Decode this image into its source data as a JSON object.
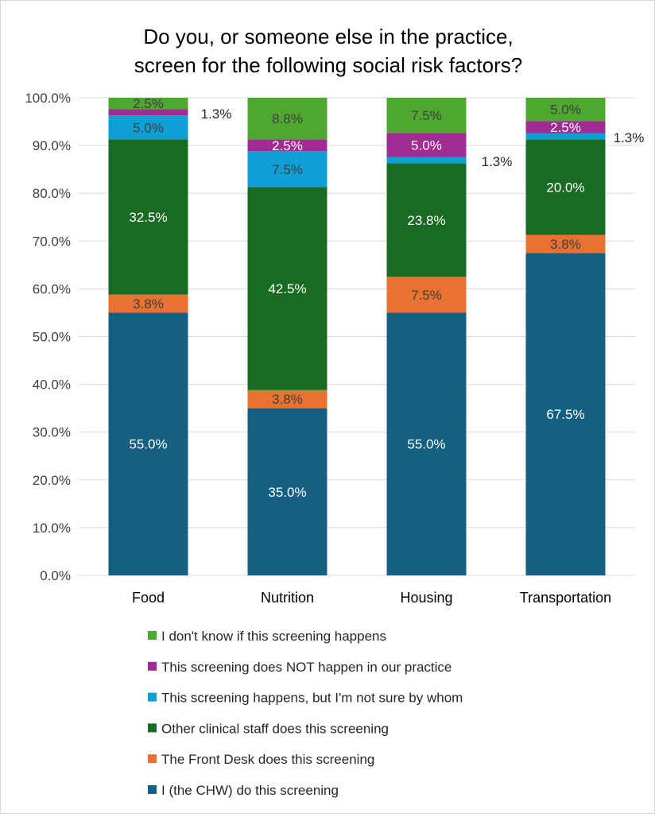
{
  "chart_data": {
    "type": "bar",
    "stacked": true,
    "title_lines": [
      "Do you, or someone else in the practice,",
      "screen for the following social risk factors?"
    ],
    "categories": [
      "Food",
      "Nutrition",
      "Housing",
      "Transportation"
    ],
    "ylim": [
      0,
      100
    ],
    "yticks": [
      0,
      10,
      20,
      30,
      40,
      50,
      60,
      70,
      80,
      90,
      100
    ],
    "ytick_labels": [
      "0.0%",
      "10.0%",
      "20.0%",
      "30.0%",
      "40.0%",
      "50.0%",
      "60.0%",
      "70.0%",
      "80.0%",
      "90.0%",
      "100.0%"
    ],
    "grid": true,
    "legend_position": "bottom",
    "series": [
      {
        "name": "I (the CHW) do this screening",
        "color": "#156082",
        "label_color": "#ffffff",
        "values": [
          55.0,
          35.0,
          55.0,
          67.5
        ],
        "labels": [
          "55.0%",
          "35.0%",
          "55.0%",
          "67.5%"
        ]
      },
      {
        "name": "The Front Desk does this screening",
        "color": "#E97132",
        "label_color": "#404040",
        "values": [
          3.8,
          3.8,
          7.5,
          3.8
        ],
        "labels": [
          "3.8%",
          "3.8%",
          "7.5%",
          "3.8%"
        ]
      },
      {
        "name": "Other clinical staff does this screening",
        "color": "#196B24",
        "label_color": "#ffffff",
        "values": [
          32.5,
          42.5,
          23.8,
          20.0
        ],
        "labels": [
          "32.5%",
          "42.5%",
          "23.8%",
          "20.0%"
        ]
      },
      {
        "name": "This screening happens, but I'm not sure by whom",
        "color": "#0F9ED5",
        "label_color": "#404040",
        "values": [
          5.0,
          7.5,
          1.3,
          1.3
        ],
        "labels": [
          "5.0%",
          "7.5%",
          "1.3%",
          "1.3%"
        ]
      },
      {
        "name": "This screening does NOT happen in our practice",
        "color": "#A02B93",
        "label_color": "#ffffff",
        "values": [
          1.3,
          2.5,
          5.0,
          2.5
        ],
        "labels": [
          "1.3%",
          "2.5%",
          "5.0%",
          "2.5%"
        ]
      },
      {
        "name": "I don't know if this screening happens",
        "color": "#4EA72E",
        "label_color": "#404040",
        "values": [
          2.5,
          8.8,
          7.5,
          5.0
        ],
        "labels": [
          "2.5%",
          "8.8%",
          "7.5%",
          "5.0%"
        ]
      }
    ]
  }
}
